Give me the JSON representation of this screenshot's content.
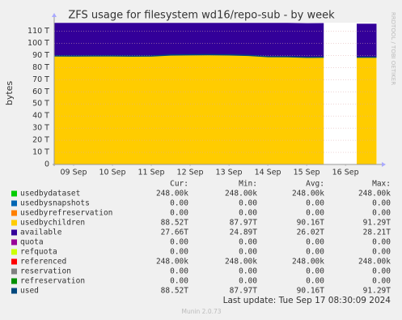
{
  "chart_data": {
    "type": "area",
    "title": "ZFS usage for filesystem wd16/repo-sub - by week",
    "y_label": "bytes",
    "side_label": "RRDTOOL / TOBI OETIKER",
    "xlim": [
      0,
      8.31
    ],
    "xticks": [
      {
        "value": 0.5,
        "label": "09 Sep"
      },
      {
        "value": 1.5,
        "label": "10 Sep"
      },
      {
        "value": 2.5,
        "label": "11 Sep"
      },
      {
        "value": 3.5,
        "label": "12 Sep"
      },
      {
        "value": 4.5,
        "label": "13 Sep"
      },
      {
        "value": 5.5,
        "label": "14 Sep"
      },
      {
        "value": 6.5,
        "label": "15 Sep"
      },
      {
        "value": 7.5,
        "label": "16 Sep"
      }
    ],
    "ylim": [
      0,
      117
    ],
    "yticks": [
      0,
      {
        "value": 10,
        "label": "10 T"
      },
      {
        "value": 20,
        "label": "20 T"
      },
      {
        "value": 30,
        "label": "30 T"
      },
      {
        "value": 40,
        "label": "40 T"
      },
      {
        "value": 50,
        "label": "50 T"
      },
      {
        "value": 60,
        "label": "60 T"
      },
      {
        "value": 70,
        "label": "70 T"
      },
      {
        "value": 80,
        "label": "80 T"
      },
      {
        "value": 90,
        "label": "90 T"
      },
      {
        "value": 100,
        "label": "100 T"
      },
      {
        "value": 110,
        "label": "110 T"
      }
    ],
    "grid": true,
    "x": [
      0,
      0.5,
      1,
      1.5,
      2,
      2.5,
      3,
      3.5,
      4,
      4.5,
      5,
      5.5,
      6,
      6.5,
      6.94,
      7.0,
      7.79,
      8.3
    ],
    "legend_headers": [
      "Cur:",
      "Min:",
      "Avg:",
      "Max:"
    ],
    "series": [
      {
        "name": "usedbydataset",
        "color": "#00cc00",
        "stats": [
          "248.00k",
          "248.00k",
          "248.00k",
          "248.00k"
        ]
      },
      {
        "name": "usedbysnapshots",
        "color": "#0066b3",
        "stats": [
          "0.00",
          "0.00",
          "0.00",
          "0.00"
        ]
      },
      {
        "name": "usedbyrefreservation",
        "color": "#ff8000",
        "stats": [
          "0.00",
          "0.00",
          "0.00",
          "0.00"
        ]
      },
      {
        "name": "usedbychildren",
        "color": "#ffcc00",
        "stats": [
          "88.52T",
          "87.97T",
          "90.16T",
          "91.29T"
        ],
        "values": [
          89.6,
          89.5,
          89.6,
          89.6,
          89.4,
          89.5,
          90.3,
          90.5,
          90.6,
          90.4,
          90.0,
          89.0,
          88.9,
          88.4,
          88.5,
          null,
          88.5,
          88.52
        ]
      },
      {
        "name": "available",
        "color": "#330099",
        "stack": true,
        "stats": [
          "27.66T",
          "24.89T",
          "26.02T",
          "28.21T"
        ],
        "values": [
          27.2,
          27.3,
          27.2,
          27.2,
          27.4,
          27.3,
          26.5,
          26.3,
          26.2,
          26.4,
          26.8,
          27.8,
          27.9,
          28.2,
          28.2,
          null,
          27.7,
          27.66
        ]
      },
      {
        "name": "quota",
        "color": "#990099",
        "stats": [
          "0.00",
          "0.00",
          "0.00",
          "0.00"
        ]
      },
      {
        "name": "refquota",
        "color": "#ccff00",
        "stats": [
          "0.00",
          "0.00",
          "0.00",
          "0.00"
        ]
      },
      {
        "name": "referenced",
        "color": "#ff0000",
        "stats": [
          "248.00k",
          "248.00k",
          "248.00k",
          "248.00k"
        ]
      },
      {
        "name": "reservation",
        "color": "#808080",
        "stats": [
          "0.00",
          "0.00",
          "0.00",
          "0.00"
        ]
      },
      {
        "name": "refreservation",
        "color": "#008f00",
        "stats": [
          "0.00",
          "0.00",
          "0.00",
          "0.00"
        ]
      },
      {
        "name": "used",
        "color": "#00487d",
        "line": true,
        "stats": [
          "88.52T",
          "87.97T",
          "90.16T",
          "91.29T"
        ],
        "values": [
          89.6,
          89.5,
          89.6,
          89.6,
          89.4,
          89.5,
          90.3,
          90.5,
          90.6,
          90.4,
          90.0,
          89.0,
          88.9,
          88.4,
          88.5,
          null,
          88.5,
          88.52
        ]
      }
    ],
    "last_update": "Last update: Tue Sep 17 08:30:09 2024",
    "footer": "Munin 2.0.73"
  }
}
